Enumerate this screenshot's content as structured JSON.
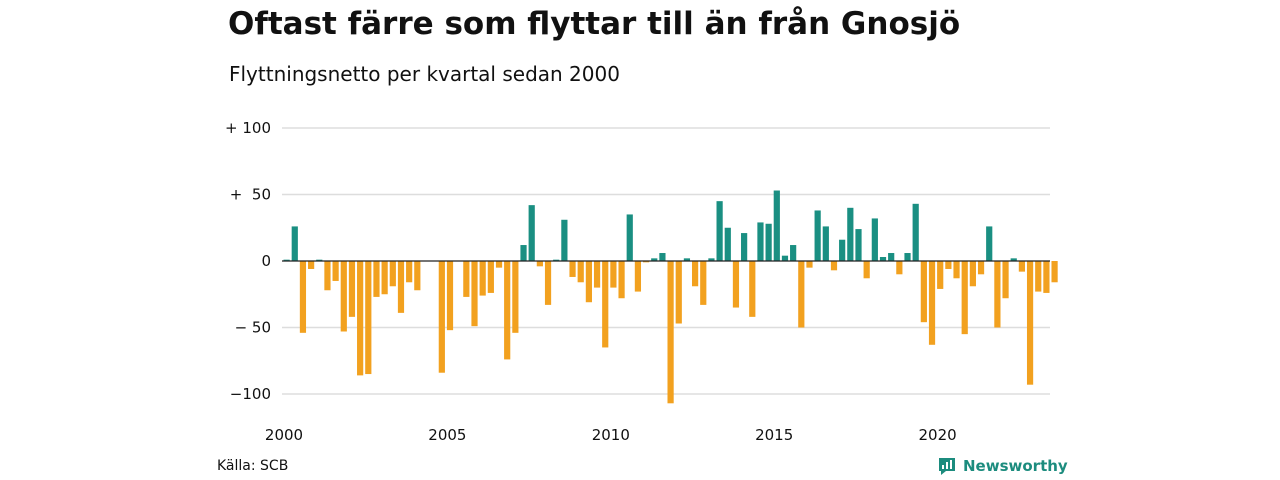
{
  "header": {
    "title": "Oftast färre som flyttar till än från Gnosjö",
    "subtitle": "Flyttningsnetto per kvartal sedan 2000"
  },
  "footer": {
    "source": "Källa: SCB",
    "brand": "Newsworthy"
  },
  "colors": {
    "positive": "#1a8f82",
    "negative": "#f2a11f",
    "grid": "#dddddd",
    "brand": "#1c8c7e"
  },
  "chart_data": {
    "type": "bar",
    "title": "Oftast färre som flyttar till än från Gnosjö",
    "subtitle": "Flyttningsnetto per kvartal sedan 2000",
    "xlabel": "",
    "ylabel": "",
    "ylim": [
      -107,
      100
    ],
    "grid": true,
    "yticks": [
      {
        "value": 100,
        "label": "+ 100"
      },
      {
        "value": 50,
        "label": "+  50"
      },
      {
        "value": 0,
        "label": "0"
      },
      {
        "value": -50,
        "label": "− 50"
      },
      {
        "value": -100,
        "label": "−100"
      }
    ],
    "xticks": [
      {
        "year": 2000,
        "label": "2000"
      },
      {
        "year": 2005,
        "label": "2005"
      },
      {
        "year": 2010,
        "label": "2010"
      },
      {
        "year": 2015,
        "label": "2015"
      },
      {
        "year": 2020,
        "label": "2020"
      }
    ],
    "start": "2000 Q1",
    "end": "2023 Q3",
    "categories": [
      "2000 Q1",
      "2000 Q2",
      "2000 Q3",
      "2000 Q4",
      "2001 Q1",
      "2001 Q2",
      "2001 Q3",
      "2001 Q4",
      "2002 Q1",
      "2002 Q2",
      "2002 Q3",
      "2002 Q4",
      "2003 Q1",
      "2003 Q2",
      "2003 Q3",
      "2003 Q4",
      "2004 Q1",
      "2004 Q2",
      "2004 Q3",
      "2004 Q4",
      "2005 Q1",
      "2005 Q2",
      "2005 Q3",
      "2005 Q4",
      "2006 Q1",
      "2006 Q2",
      "2006 Q3",
      "2006 Q4",
      "2007 Q1",
      "2007 Q2",
      "2007 Q3",
      "2007 Q4",
      "2008 Q1",
      "2008 Q2",
      "2008 Q3",
      "2008 Q4",
      "2009 Q1",
      "2009 Q2",
      "2009 Q3",
      "2009 Q4",
      "2010 Q1",
      "2010 Q2",
      "2010 Q3",
      "2010 Q4",
      "2011 Q1",
      "2011 Q2",
      "2011 Q3",
      "2011 Q4",
      "2012 Q1",
      "2012 Q2",
      "2012 Q3",
      "2012 Q4",
      "2013 Q1",
      "2013 Q2",
      "2013 Q3",
      "2013 Q4",
      "2014 Q1",
      "2014 Q2",
      "2014 Q3",
      "2014 Q4",
      "2015 Q1",
      "2015 Q2",
      "2015 Q3",
      "2015 Q4",
      "2016 Q1",
      "2016 Q2",
      "2016 Q3",
      "2016 Q4",
      "2017 Q1",
      "2017 Q2",
      "2017 Q3",
      "2017 Q4",
      "2018 Q1",
      "2018 Q2",
      "2018 Q3",
      "2018 Q4",
      "2019 Q1",
      "2019 Q2",
      "2019 Q3",
      "2019 Q4",
      "2020 Q1",
      "2020 Q2",
      "2020 Q3",
      "2020 Q4",
      "2021 Q1",
      "2021 Q2",
      "2021 Q3",
      "2021 Q4",
      "2022 Q1",
      "2022 Q2",
      "2022 Q3",
      "2022 Q4",
      "2023 Q1",
      "2023 Q2",
      "2023 Q3"
    ],
    "values": [
      1,
      26,
      -54,
      -6,
      1,
      -22,
      -15,
      -53,
      -42,
      -86,
      -85,
      -27,
      -25,
      -19,
      -39,
      -16,
      -22,
      0,
      0,
      -84,
      -52,
      0,
      -27,
      -49,
      -26,
      -24,
      -5,
      -74,
      -54,
      12,
      42,
      -4,
      -33,
      1,
      31,
      -12,
      -16,
      -31,
      -20,
      -65,
      -20,
      -28,
      35,
      -23,
      -1,
      2,
      6,
      -107,
      -47,
      2,
      -19,
      -33,
      2,
      45,
      25,
      -35,
      21,
      -42,
      29,
      28,
      53,
      4,
      12,
      -50,
      -5,
      38,
      26,
      -7,
      16,
      40,
      24,
      -13,
      32,
      3,
      6,
      -10,
      6,
      43,
      -46,
      -63,
      -21,
      -6,
      -13,
      -55,
      -19,
      -10,
      26,
      -50,
      -28,
      2,
      -8,
      -93,
      -23,
      -24,
      -16
    ]
  }
}
